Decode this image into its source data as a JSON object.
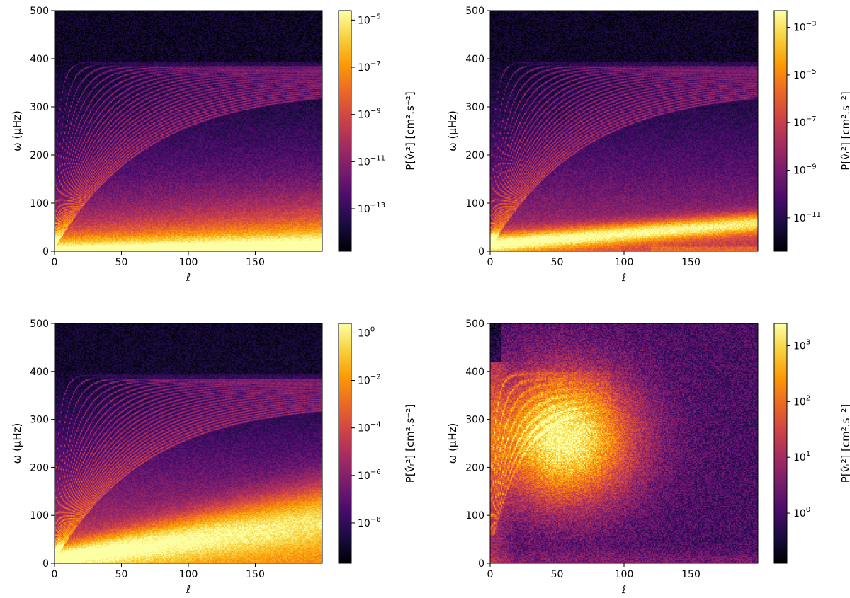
{
  "figure": {
    "colormap": [
      "#000004",
      "#1b0c41",
      "#4a0c6b",
      "#781c6d",
      "#a52c60",
      "#cf4446",
      "#ed6925",
      "#fb9b06",
      "#f7d13d",
      "#fcffa4"
    ]
  },
  "chart_data": [
    {
      "type": "heatmap",
      "panel": "top-left",
      "xlabel": "ℓ",
      "ylabel": "ω (μHz)",
      "xlim": [
        0,
        200
      ],
      "ylim": [
        0,
        500
      ],
      "xticks": [
        0,
        50,
        100,
        150
      ],
      "yticks": [
        0,
        100,
        200,
        300,
        400,
        500
      ],
      "colorbar": {
        "label": "P[v̂ᵣ²] [cm².s⁻²]",
        "scale": "log",
        "range_log10": [
          -14.8,
          -4.6
        ],
        "ticks": [
          {
            "value": 1e-05,
            "base": "10",
            "exp": "−5"
          },
          {
            "value": 1e-07,
            "base": "10",
            "exp": "−7"
          },
          {
            "value": 1e-09,
            "base": "10",
            "exp": "−9"
          },
          {
            "value": 1e-11,
            "base": "10",
            "exp": "−11"
          },
          {
            "value": 1e-13,
            "base": "10",
            "exp": "−13"
          }
        ]
      }
    },
    {
      "type": "heatmap",
      "panel": "top-right",
      "xlabel": "ℓ",
      "ylabel": "ω (μHz)",
      "xlim": [
        0,
        200
      ],
      "ylim": [
        0,
        500
      ],
      "xticks": [
        0,
        50,
        100,
        150
      ],
      "yticks": [
        0,
        100,
        200,
        300,
        400,
        500
      ],
      "colorbar": {
        "label": "P[v̂ᵣ²] [cm².s⁻²]",
        "scale": "log",
        "range_log10": [
          -12.4,
          -2.3
        ],
        "ticks": [
          {
            "value": 0.001,
            "base": "10",
            "exp": "−3"
          },
          {
            "value": 1e-05,
            "base": "10",
            "exp": "−5"
          },
          {
            "value": 1e-07,
            "base": "10",
            "exp": "−7"
          },
          {
            "value": 1e-09,
            "base": "10",
            "exp": "−9"
          },
          {
            "value": 1e-11,
            "base": "10",
            "exp": "−11"
          }
        ]
      }
    },
    {
      "type": "heatmap",
      "panel": "bottom-left",
      "xlabel": "ℓ",
      "ylabel": "ω (μHz)",
      "xlim": [
        0,
        200
      ],
      "ylim": [
        0,
        500
      ],
      "xticks": [
        0,
        50,
        100,
        150
      ],
      "yticks": [
        0,
        100,
        200,
        300,
        400,
        500
      ],
      "colorbar": {
        "label": "P[v̂ᵣ²] [cm².s⁻²]",
        "scale": "log",
        "range_log10": [
          -9.7,
          0.4
        ],
        "ticks": [
          {
            "value": 1,
            "base": "10",
            "exp": "0"
          },
          {
            "value": 0.01,
            "base": "10",
            "exp": "−2"
          },
          {
            "value": 0.0001,
            "base": "10",
            "exp": "−4"
          },
          {
            "value": 1e-06,
            "base": "10",
            "exp": "−6"
          },
          {
            "value": 1e-08,
            "base": "10",
            "exp": "−8"
          }
        ]
      }
    },
    {
      "type": "heatmap",
      "panel": "bottom-right",
      "xlabel": "ℓ",
      "ylabel": "ω (μHz)",
      "xlim": [
        0,
        200
      ],
      "ylim": [
        0,
        500
      ],
      "xticks": [
        0,
        50,
        100,
        150
      ],
      "yticks": [
        0,
        100,
        200,
        300,
        400,
        500
      ],
      "colorbar": {
        "label": "P[v̂ᵣ²] [cm².s⁻²]",
        "scale": "log",
        "range_log10": [
          -0.9,
          3.4
        ],
        "ticks": [
          {
            "value": 1000,
            "base": "10",
            "exp": "3"
          },
          {
            "value": 100,
            "base": "10",
            "exp": "2"
          },
          {
            "value": 10,
            "base": "10",
            "exp": "1"
          },
          {
            "value": 1,
            "base": "10",
            "exp": "0"
          }
        ]
      }
    }
  ]
}
